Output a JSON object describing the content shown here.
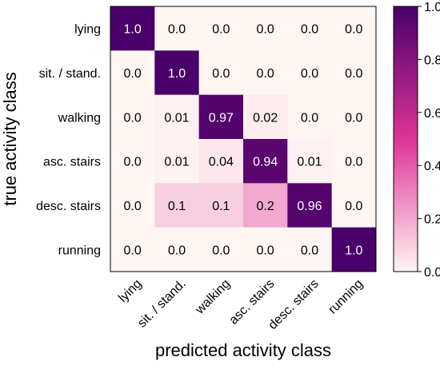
{
  "chart_data": {
    "type": "heatmap",
    "xlabel": "predicted activity class",
    "ylabel": "true activity class",
    "x_categories": [
      "lying",
      "sit. / stand.",
      "walking",
      "asc. stairs",
      "desc. stairs",
      "running"
    ],
    "y_categories": [
      "lying",
      "sit. / stand.",
      "walking",
      "asc. stairs",
      "desc. stairs",
      "running"
    ],
    "values": [
      [
        1.0,
        0.0,
        0.0,
        0.0,
        0.0,
        0.0
      ],
      [
        0.0,
        1.0,
        0.0,
        0.0,
        0.0,
        0.0
      ],
      [
        0.0,
        0.01,
        0.97,
        0.02,
        0.0,
        0.0
      ],
      [
        0.0,
        0.01,
        0.04,
        0.94,
        0.01,
        0.0
      ],
      [
        0.0,
        0.1,
        0.1,
        0.2,
        0.96,
        0.0
      ],
      [
        0.0,
        0.0,
        0.0,
        0.0,
        0.0,
        1.0
      ]
    ],
    "value_labels": [
      [
        "1.0",
        "0.0",
        "0.0",
        "0.0",
        "0.0",
        "0.0"
      ],
      [
        "0.0",
        "1.0",
        "0.0",
        "0.0",
        "0.0",
        "0.0"
      ],
      [
        "0.0",
        "0.01",
        "0.97",
        "0.02",
        "0.0",
        "0.0"
      ],
      [
        "0.0",
        "0.01",
        "0.04",
        "0.94",
        "0.01",
        "0.0"
      ],
      [
        "0.0",
        "0.1",
        "0.1",
        "0.2",
        "0.96",
        "0.0"
      ],
      [
        "0.0",
        "0.0",
        "0.0",
        "0.0",
        "0.0",
        "1.0"
      ]
    ],
    "colorbar": {
      "range": [
        0.0,
        1.0
      ],
      "ticks": [
        "0.0",
        "0.2",
        "0.4",
        "0.6",
        "0.8",
        "1.0"
      ],
      "low_color": "#fff5f3",
      "mid_color": "#dd3497",
      "high_color": "#49006a"
    },
    "grid": false
  }
}
